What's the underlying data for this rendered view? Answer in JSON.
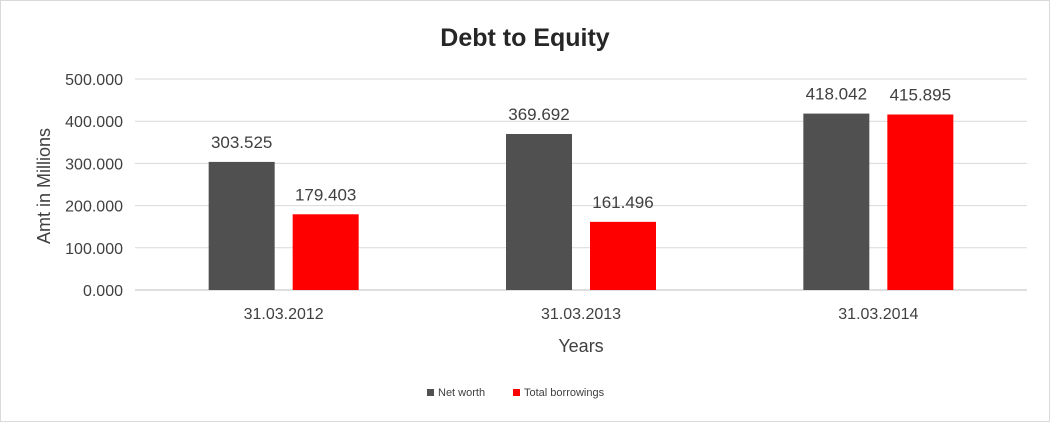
{
  "chart_data": {
    "type": "bar",
    "title": "Debt to Equity",
    "xlabel": "Years",
    "ylabel": "Amt in Millions",
    "categories": [
      "31.03.2012",
      "31.03.2013",
      "31.03.2014"
    ],
    "series": [
      {
        "name": "Net worth",
        "color": "#505050",
        "values": [
          303.525,
          369.692,
          418.042
        ],
        "labels": [
          "303.525",
          "369.692",
          "418.042"
        ]
      },
      {
        "name": "Total borrowings",
        "color": "#ff0000",
        "values": [
          179.403,
          161.496,
          415.895
        ],
        "labels": [
          "179.403",
          "161.496",
          "415.895"
        ]
      }
    ],
    "ylim": [
      0,
      500
    ],
    "yticks": [
      "0.000",
      "100.000",
      "200.000",
      "300.000",
      "400.000",
      "500.000"
    ],
    "grid": true,
    "legend_position": "bottom"
  }
}
